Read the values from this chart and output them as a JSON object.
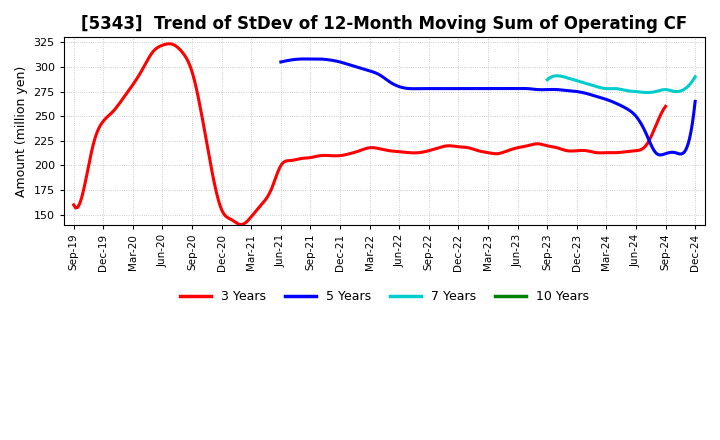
{
  "title": "[5343]  Trend of StDev of 12-Month Moving Sum of Operating CF",
  "ylabel": "Amount (million yen)",
  "ylim": [
    140,
    330
  ],
  "yticks": [
    150,
    175,
    200,
    225,
    250,
    275,
    300,
    325
  ],
  "background_color": "#ffffff",
  "grid_color": "#b0b0b0",
  "series": {
    "3 Years": {
      "color": "#ff0000",
      "x": [
        0,
        1,
        2,
        3,
        4,
        5,
        6,
        7,
        8,
        9,
        10,
        11,
        12,
        13,
        14,
        15,
        16,
        17,
        18,
        19,
        20,
        21,
        22,
        23,
        24,
        25,
        26,
        27,
        28,
        29,
        30,
        31,
        32,
        33,
        34,
        35,
        36,
        37,
        38,
        39,
        40,
        41,
        42,
        43,
        44,
        45,
        46,
        47,
        48,
        49,
        50,
        51,
        52,
        53,
        54,
        55,
        56,
        57,
        58,
        59,
        60
      ],
      "y": [
        160,
        175,
        222,
        245,
        255,
        268,
        282,
        298,
        315,
        322,
        323,
        315,
        295,
        250,
        195,
        155,
        145,
        140,
        148,
        160,
        175,
        200,
        205,
        207,
        208,
        210,
        210,
        210,
        212,
        215,
        218,
        217,
        215,
        214,
        213,
        213,
        215,
        218,
        220,
        219,
        218,
        215,
        213,
        212,
        215,
        218,
        220,
        222,
        220,
        218,
        215,
        215,
        215,
        213,
        213,
        213,
        214,
        215,
        220,
        240,
        260
      ]
    },
    "5 Years": {
      "color": "#0000ff",
      "x": [
        21,
        22,
        23,
        24,
        25,
        26,
        27,
        28,
        29,
        30,
        31,
        32,
        33,
        34,
        35,
        36,
        37,
        38,
        39,
        40,
        41,
        42,
        43,
        44,
        45,
        46,
        47,
        48,
        49,
        50,
        51,
        52,
        53,
        54,
        55,
        56,
        57,
        58,
        59,
        60,
        61,
        62,
        63
      ],
      "y": [
        305,
        307,
        308,
        308,
        308,
        307,
        305,
        302,
        299,
        296,
        292,
        285,
        280,
        278,
        278,
        278,
        278,
        278,
        278,
        278,
        278,
        278,
        278,
        278,
        278,
        278,
        277,
        277,
        277,
        276,
        275,
        273,
        270,
        267,
        263,
        258,
        250,
        233,
        213,
        212,
        213,
        215,
        265
      ]
    },
    "7 Years": {
      "color": "#00cccc",
      "x": [
        48,
        49,
        50,
        51,
        52,
        53,
        54,
        55,
        56,
        57,
        58,
        59,
        60,
        61,
        62,
        63
      ],
      "y": [
        287,
        291,
        289,
        286,
        283,
        280,
        278,
        278,
        276,
        275,
        274,
        275,
        277,
        275,
        278,
        290
      ]
    },
    "10 Years": {
      "color": "#008000",
      "x": [],
      "y": []
    }
  },
  "xtick_labels": [
    "Sep-19",
    "Dec-19",
    "Mar-20",
    "Jun-20",
    "Sep-20",
    "Dec-20",
    "Mar-21",
    "Jun-21",
    "Sep-21",
    "Dec-21",
    "Mar-22",
    "Jun-22",
    "Sep-22",
    "Dec-22",
    "Mar-23",
    "Jun-23",
    "Sep-23",
    "Dec-23",
    "Mar-24",
    "Jun-24",
    "Sep-24",
    "Dec-24"
  ],
  "xtick_positions": [
    0,
    3,
    6,
    9,
    12,
    15,
    18,
    21,
    24,
    27,
    30,
    33,
    36,
    39,
    42,
    45,
    48,
    51,
    54,
    57,
    60,
    63
  ],
  "xlim": [
    -1,
    64
  ],
  "title_fontsize": 12,
  "legend_items": [
    "3 Years",
    "5 Years",
    "7 Years",
    "10 Years"
  ],
  "legend_colors": [
    "#ff0000",
    "#0000ff",
    "#00cccc",
    "#008000"
  ]
}
